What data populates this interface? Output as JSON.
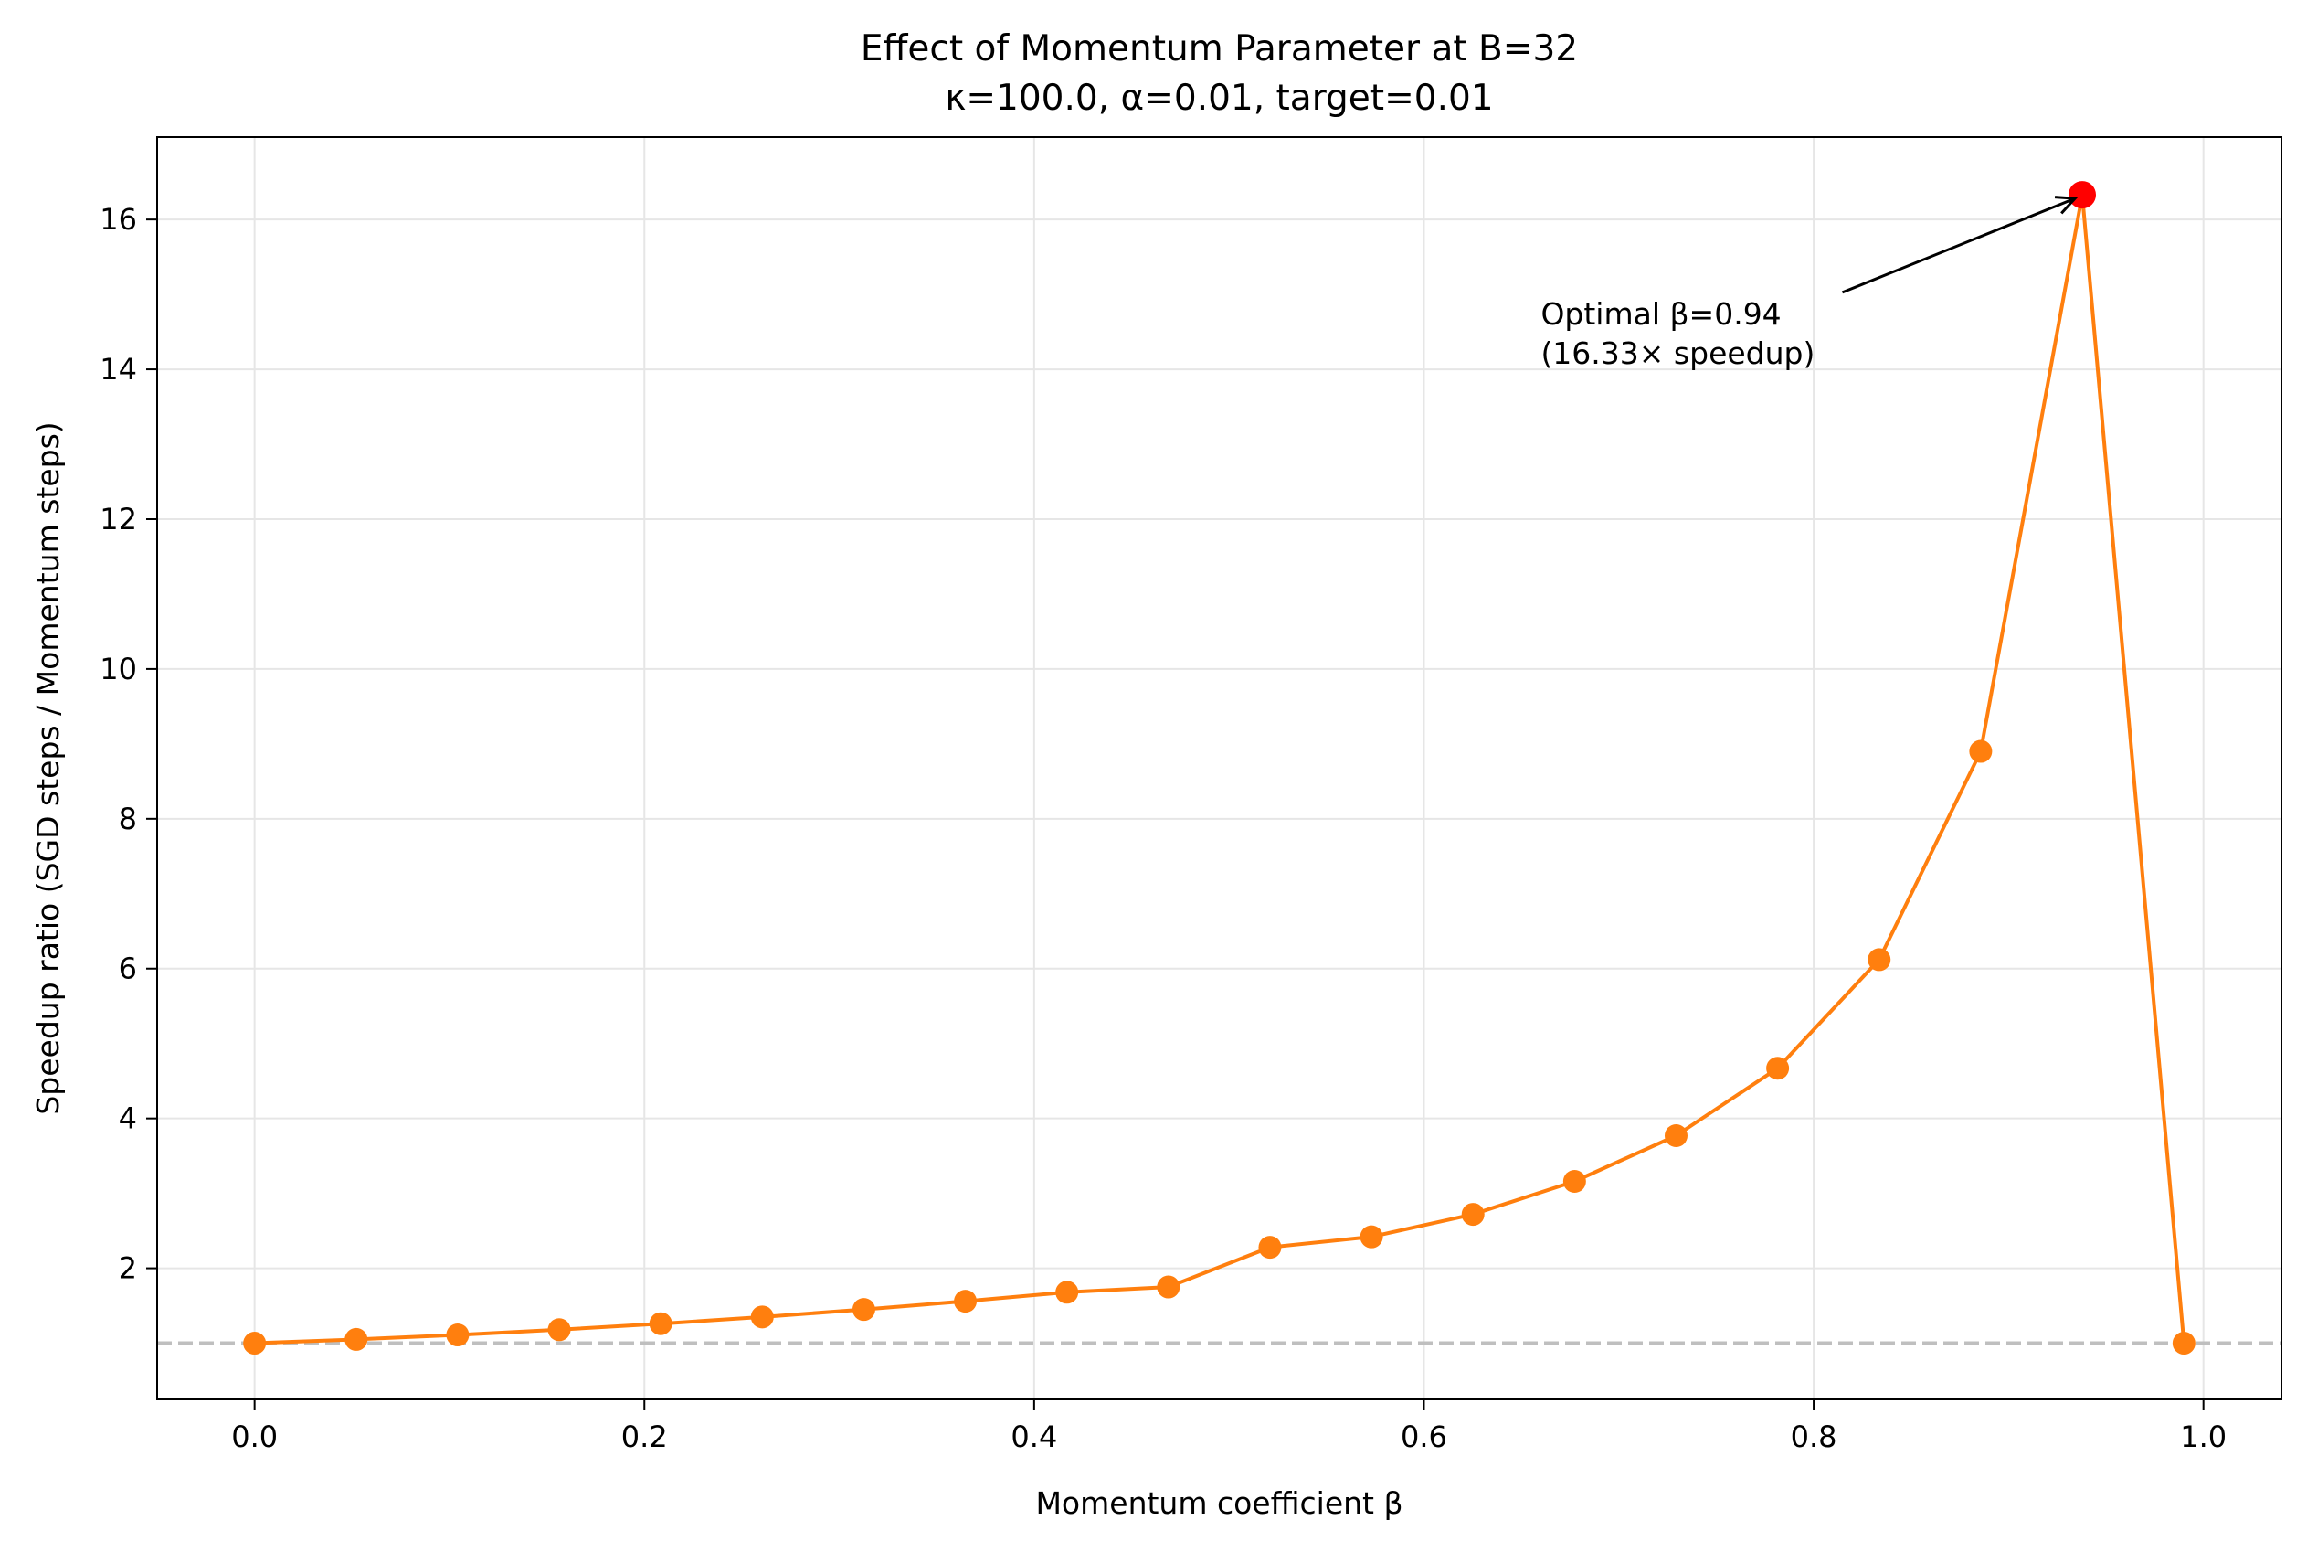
{
  "chart_data": {
    "type": "line",
    "title": "Effect of Momentum Parameter at B=32",
    "subtitle": "κ=100.0, α=0.01, target=0.01",
    "xlabel": "Momentum coefficient β",
    "ylabel": "Speedup ratio (SGD steps / Momentum steps)",
    "xlim": [
      -0.05,
      1.04
    ],
    "ylim": [
      0.25,
      17.1
    ],
    "xticks": [
      0.0,
      0.2,
      0.4,
      0.6,
      0.8,
      1.0
    ],
    "xtick_labels": [
      "0.0",
      "0.2",
      "0.4",
      "0.6",
      "0.8",
      "1.0"
    ],
    "yticks": [
      2,
      4,
      6,
      8,
      10,
      12,
      14,
      16
    ],
    "ytick_labels": [
      "2",
      "4",
      "6",
      "8",
      "10",
      "12",
      "14",
      "16"
    ],
    "grid": true,
    "series": [
      {
        "color": "#ff7f0e",
        "x": [
          0.0,
          0.0521,
          0.1042,
          0.1563,
          0.2084,
          0.2605,
          0.3126,
          0.3647,
          0.4168,
          0.4689,
          0.521,
          0.5731,
          0.6252,
          0.6773,
          0.7294,
          0.7815,
          0.8336,
          0.8857,
          0.9378,
          0.99
        ],
        "y": [
          1.0,
          1.05,
          1.11,
          1.18,
          1.26,
          1.35,
          1.45,
          1.56,
          1.68,
          1.75,
          2.28,
          2.42,
          2.72,
          3.16,
          3.77,
          4.67,
          6.12,
          8.9,
          16.33,
          1.0
        ]
      }
    ],
    "baseline": {
      "y": 1.0,
      "style": "dashed",
      "color": "#bfbfbf"
    },
    "highlight": {
      "x": 0.9378,
      "y": 16.33,
      "color": "#ff0000"
    },
    "annotation": {
      "lines": [
        "Optimal β=0.94",
        "(16.33× speedup)"
      ],
      "text_x": 0.66,
      "text_y": 14.6,
      "arrow_to_x": 0.9378,
      "arrow_to_y": 16.33
    }
  }
}
